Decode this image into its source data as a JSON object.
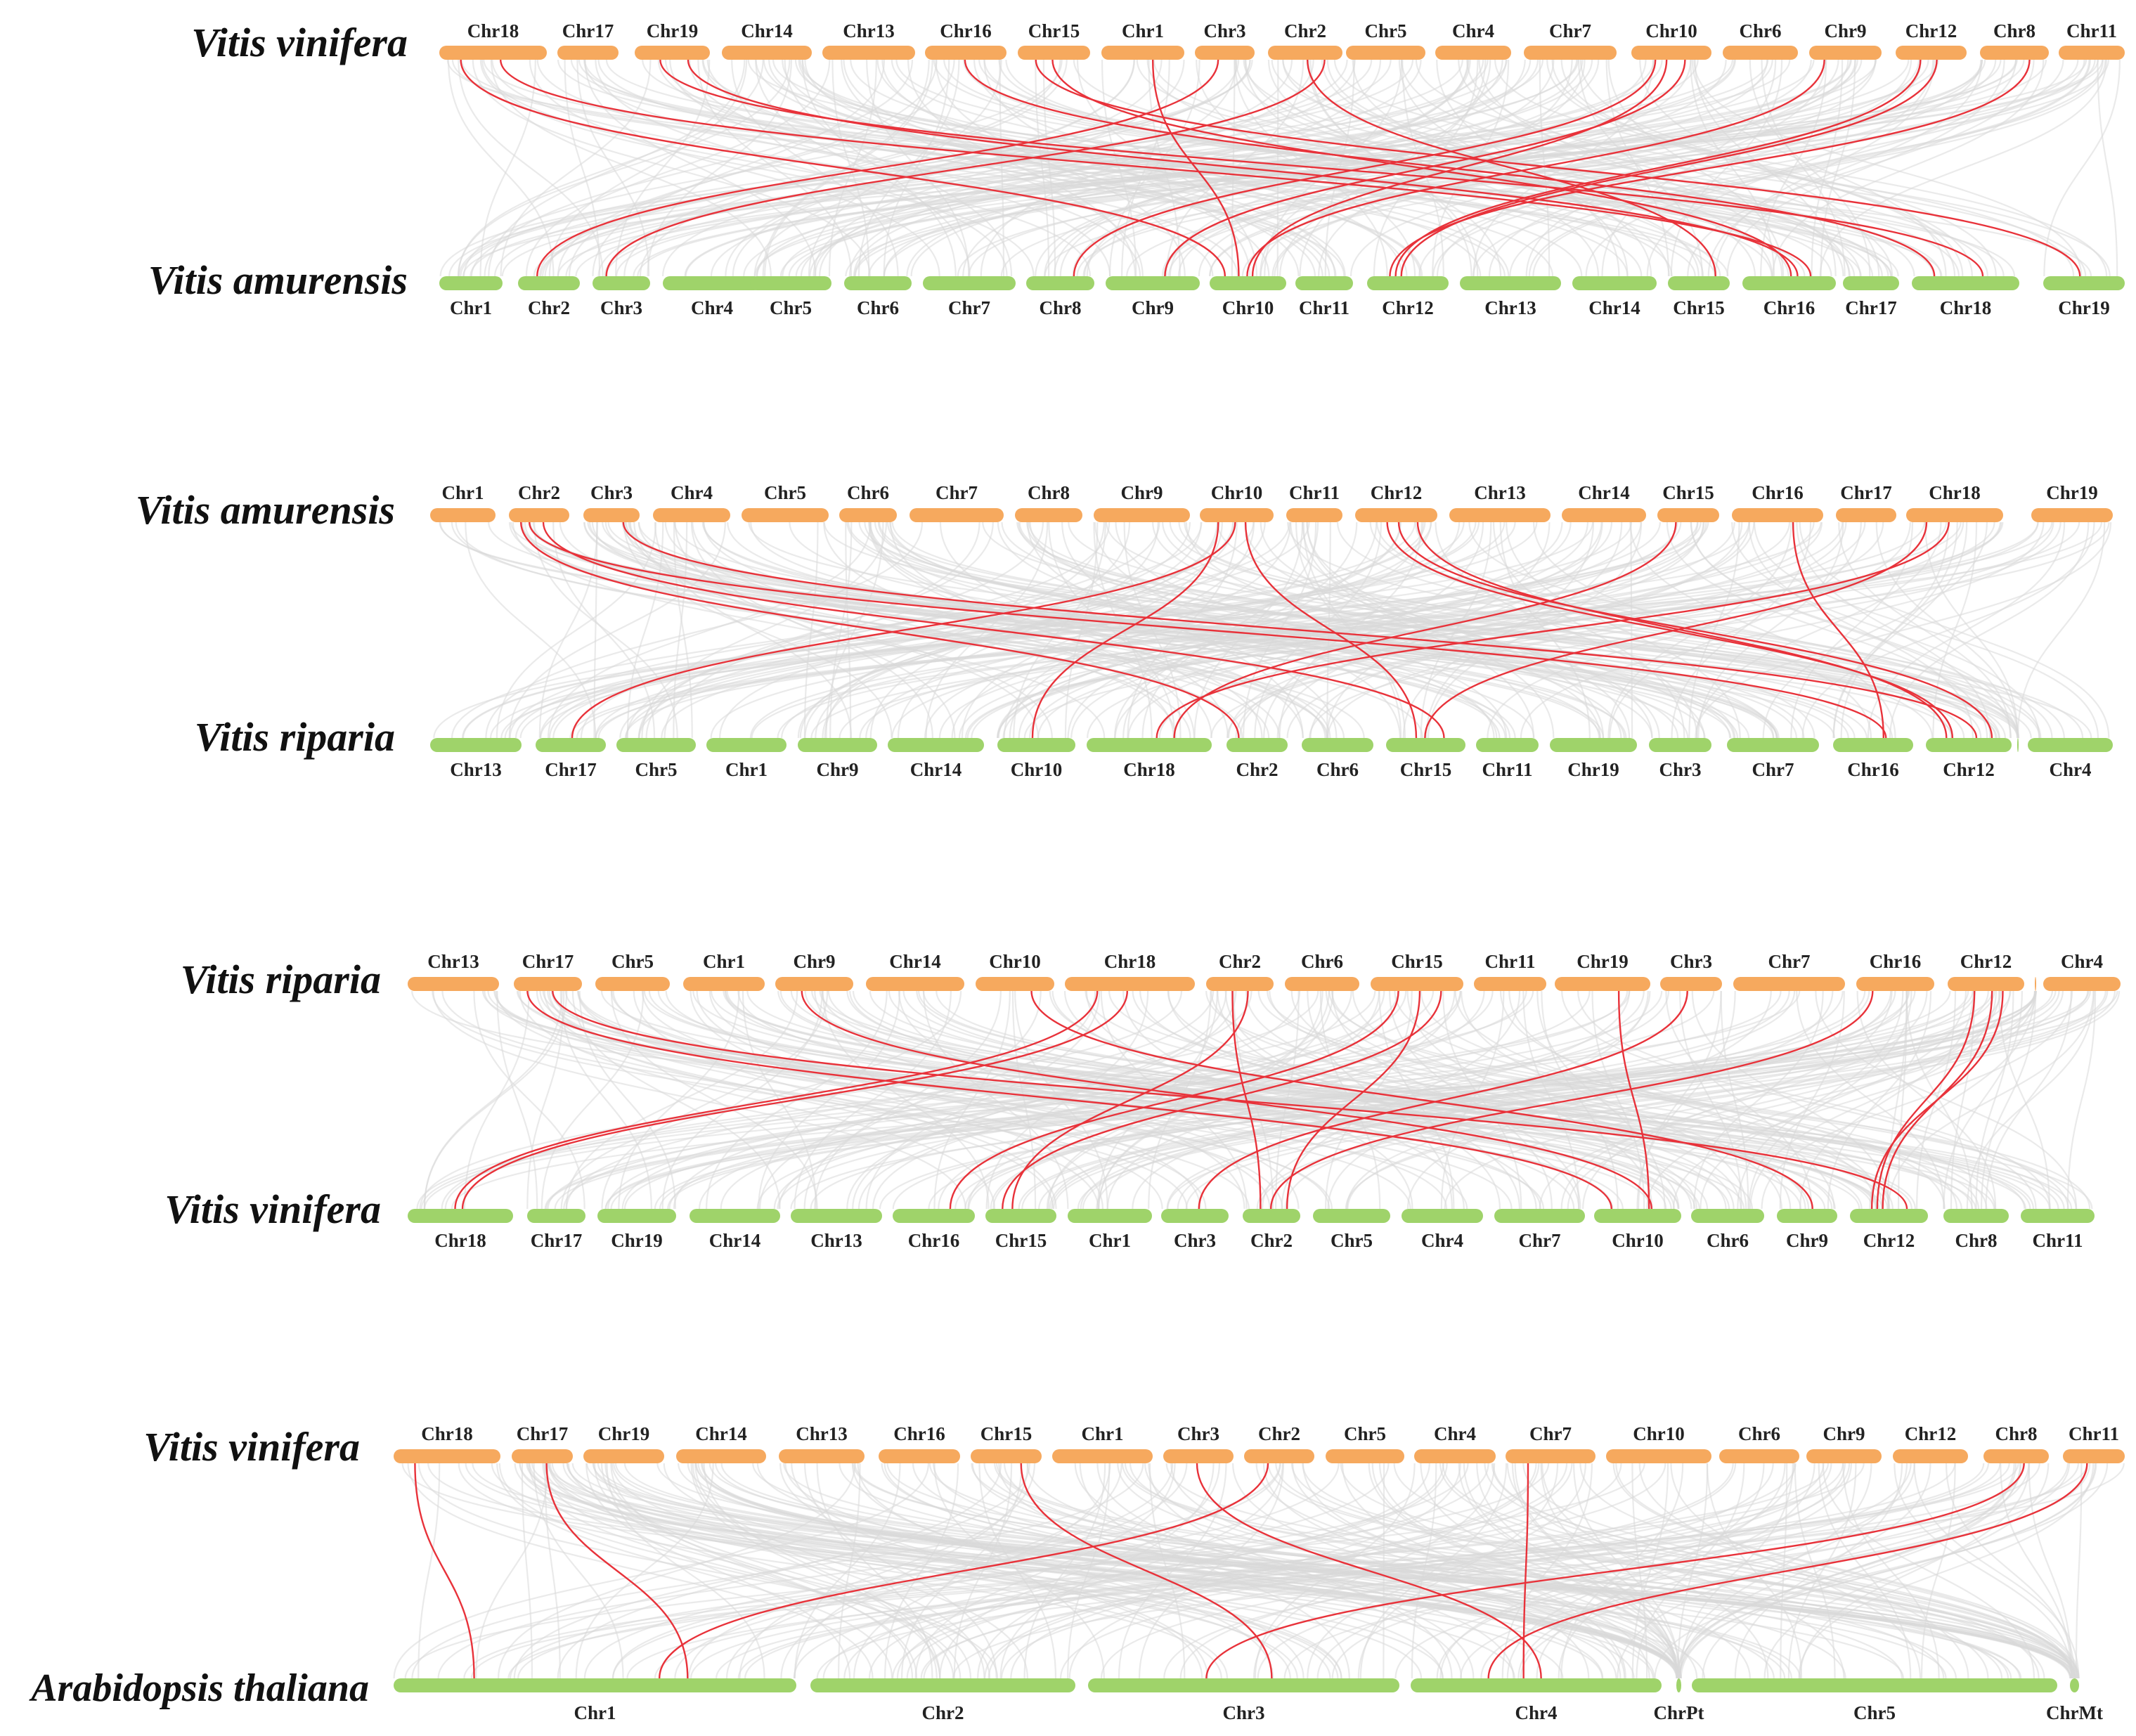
{
  "colors": {
    "top_bar": "#F6A95E",
    "bottom_bar": "#9FD36A",
    "background_link": "#D9D9D9",
    "highlight_link": "#E8323A",
    "label": "#222222"
  },
  "panels": [
    {
      "top_species": "Vitis vinifera",
      "bottom_species": "Vitis amurensis",
      "top_chromosomes": [
        "Chr18",
        "Chr17",
        "Chr19",
        "Chr14",
        "Chr13",
        "Chr16",
        "Chr15",
        "Chr1",
        "Chr3",
        "Chr2",
        "Chr5",
        "Chr4",
        "Chr7",
        "Chr10",
        "Chr6",
        "Chr9",
        "Chr12",
        "Chr8",
        "Chr11"
      ],
      "bottom_chromosomes": [
        "Chr1",
        "Chr2",
        "Chr3",
        "Chr4",
        "Chr5",
        "Chr6",
        "Chr7",
        "Chr8",
        "Chr9",
        "Chr10",
        "Chr11",
        "Chr12",
        "Chr13",
        "Chr14",
        "Chr15",
        "Chr16",
        "Chr17",
        "Chr18",
        "Chr19"
      ],
      "highlight_links": [
        [
          "Chr18",
          "Chr10"
        ],
        [
          "Chr18",
          "Chr16"
        ],
        [
          "Chr19",
          "Chr18"
        ],
        [
          "Chr19",
          "Chr16"
        ],
        [
          "Chr15",
          "Chr16"
        ],
        [
          "Chr15",
          "Chr19"
        ],
        [
          "Chr1",
          "Chr10"
        ],
        [
          "Chr3",
          "Chr2"
        ],
        [
          "Chr2",
          "Chr3"
        ],
        [
          "Chr2",
          "Chr15"
        ],
        [
          "Chr10",
          "Chr8"
        ],
        [
          "Chr10",
          "Chr9"
        ],
        [
          "Chr10",
          "Chr10"
        ],
        [
          "Chr9",
          "Chr10"
        ],
        [
          "Chr12",
          "Chr12"
        ],
        [
          "Chr12",
          "Chr12"
        ],
        [
          "Chr8",
          "Chr12"
        ],
        [
          "Chr16",
          "Chr18"
        ]
      ]
    },
    {
      "top_species": "Vitis amurensis",
      "bottom_species": "Vitis riparia",
      "top_chromosomes": [
        "Chr1",
        "Chr2",
        "Chr3",
        "Chr4",
        "Chr5",
        "Chr6",
        "Chr7",
        "Chr8",
        "Chr9",
        "Chr10",
        "Chr11",
        "Chr12",
        "Chr13",
        "Chr14",
        "Chr15",
        "Chr16",
        "Chr17",
        "Chr18",
        "Chr19"
      ],
      "bottom_chromosomes": [
        "Chr13",
        "Chr17",
        "Chr5",
        "Chr1",
        "Chr9",
        "Chr14",
        "Chr10",
        "Chr18",
        "Chr2",
        "Chr6",
        "Chr15",
        "Chr11",
        "Chr19",
        "Chr3",
        "Chr7",
        "Chr16",
        "Chr12",
        "",
        "Chr4"
      ],
      "highlight_links": [
        [
          "Chr2",
          "Chr2"
        ],
        [
          "Chr2",
          "Chr15"
        ],
        [
          "Chr2",
          "Chr16"
        ],
        [
          "Chr3",
          "Chr12"
        ],
        [
          "Chr10",
          "Chr17"
        ],
        [
          "Chr10",
          "Chr10"
        ],
        [
          "Chr10",
          "Chr15"
        ],
        [
          "Chr12",
          "Chr12"
        ],
        [
          "Chr12",
          "Chr12"
        ],
        [
          "Chr12",
          "Chr12"
        ],
        [
          "Chr15",
          "Chr18"
        ],
        [
          "Chr16",
          "Chr16"
        ],
        [
          "Chr18",
          "Chr18"
        ],
        [
          "Chr18",
          "Chr15"
        ]
      ]
    },
    {
      "top_species": "Vitis riparia",
      "bottom_species": "Vitis vinifera",
      "top_chromosomes": [
        "Chr13",
        "Chr17",
        "Chr5",
        "Chr1",
        "Chr9",
        "Chr14",
        "Chr10",
        "Chr18",
        "Chr2",
        "Chr6",
        "Chr15",
        "Chr11",
        "Chr19",
        "Chr3",
        "Chr7",
        "Chr16",
        "Chr12",
        "",
        "Chr4"
      ],
      "bottom_chromosomes": [
        "Chr18",
        "Chr17",
        "Chr19",
        "Chr14",
        "Chr13",
        "Chr16",
        "Chr15",
        "Chr1",
        "Chr3",
        "Chr2",
        "Chr5",
        "Chr4",
        "Chr7",
        "Chr10",
        "Chr6",
        "Chr9",
        "Chr12",
        "Chr8",
        "Chr11"
      ],
      "highlight_links": [
        [
          "Chr17",
          "Chr10"
        ],
        [
          "Chr17",
          "Chr12"
        ],
        [
          "Chr9",
          "Chr10"
        ],
        [
          "Chr10",
          "Chr9"
        ],
        [
          "Chr18",
          "Chr18"
        ],
        [
          "Chr18",
          "Chr18"
        ],
        [
          "Chr2",
          "Chr15"
        ],
        [
          "Chr2",
          "Chr2"
        ],
        [
          "Chr15",
          "Chr15"
        ],
        [
          "Chr15",
          "Chr2"
        ],
        [
          "Chr15",
          "Chr16"
        ],
        [
          "Chr19",
          "Chr10"
        ],
        [
          "Chr3",
          "Chr3"
        ],
        [
          "Chr16",
          "Chr2"
        ],
        [
          "Chr12",
          "Chr12"
        ],
        [
          "Chr12",
          "Chr12"
        ],
        [
          "Chr12",
          "Chr12"
        ]
      ]
    },
    {
      "top_species": "Vitis vinifera",
      "bottom_species": "Arabidopsis thaliana",
      "top_chromosomes": [
        "Chr18",
        "Chr17",
        "Chr19",
        "Chr14",
        "Chr13",
        "Chr16",
        "Chr15",
        "Chr1",
        "Chr3",
        "Chr2",
        "Chr5",
        "Chr4",
        "Chr7",
        "Chr10",
        "Chr6",
        "Chr9",
        "Chr12",
        "Chr8",
        "Chr11"
      ],
      "bottom_chromosomes": [
        "Chr1",
        "Chr2",
        "Chr3",
        "Chr4",
        "ChrPt",
        "Chr5",
        "ChrMt"
      ],
      "highlight_links": [
        [
          "Chr18",
          "Chr1"
        ],
        [
          "Chr17",
          "Chr1"
        ],
        [
          "Chr2",
          "Chr1"
        ],
        [
          "Chr15",
          "Chr3"
        ],
        [
          "Chr3",
          "Chr4"
        ],
        [
          "Chr7",
          "Chr4"
        ],
        [
          "Chr8",
          "Chr3"
        ],
        [
          "Chr11",
          "Chr4"
        ]
      ]
    }
  ]
}
